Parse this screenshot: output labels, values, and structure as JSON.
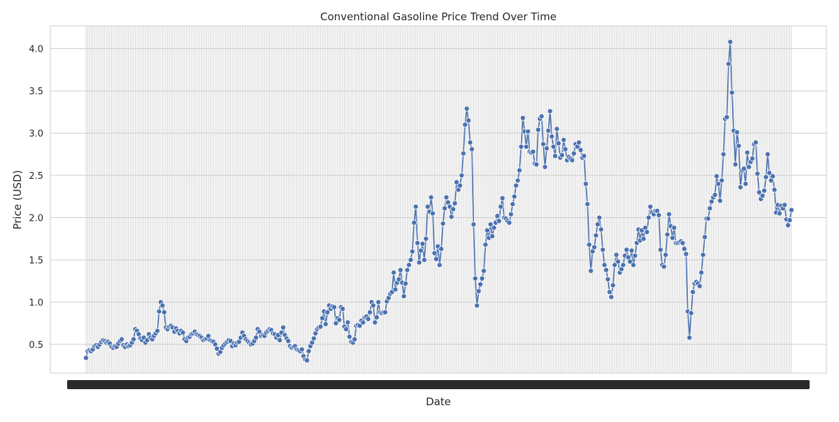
{
  "chart_data": {
    "type": "line",
    "title": "Conventional Gasoline Price Trend Over Time",
    "xlabel": "Date",
    "ylabel": "Price (USD)",
    "ylim": [
      0.16,
      4.27
    ],
    "yticks": [
      0.5,
      1.0,
      1.5,
      2.0,
      2.5,
      3.0,
      3.5,
      4.0
    ],
    "ytick_labels": [
      "0.5",
      "1.0",
      "1.5",
      "2.0",
      "2.5",
      "3.0",
      "3.5",
      "4.0"
    ],
    "grid": true,
    "x_tick_labels_note": "x tick labels are overlapping and illegible",
    "series": [
      {
        "color": "#4c72b0",
        "values": [
          0.34,
          0.42,
          0.43,
          0.42,
          0.44,
          0.48,
          0.49,
          0.47,
          0.5,
          0.53,
          0.55,
          0.54,
          0.52,
          0.53,
          0.51,
          0.47,
          0.46,
          0.48,
          0.47,
          0.51,
          0.54,
          0.56,
          0.49,
          0.47,
          0.5,
          0.48,
          0.49,
          0.52,
          0.56,
          0.68,
          0.66,
          0.62,
          0.57,
          0.55,
          0.58,
          0.52,
          0.55,
          0.62,
          0.58,
          0.56,
          0.6,
          0.63,
          0.66,
          0.89,
          1.0,
          0.96,
          0.88,
          0.7,
          0.68,
          0.71,
          0.72,
          0.7,
          0.65,
          0.69,
          0.66,
          0.63,
          0.66,
          0.64,
          0.56,
          0.54,
          0.58,
          0.59,
          0.62,
          0.63,
          0.65,
          0.62,
          0.61,
          0.6,
          0.58,
          0.55,
          0.56,
          0.57,
          0.6,
          0.55,
          0.54,
          0.53,
          0.5,
          0.45,
          0.39,
          0.41,
          0.46,
          0.49,
          0.51,
          0.53,
          0.55,
          0.54,
          0.48,
          0.51,
          0.49,
          0.52,
          0.53,
          0.58,
          0.64,
          0.6,
          0.56,
          0.54,
          0.52,
          0.5,
          0.51,
          0.54,
          0.58,
          0.68,
          0.65,
          0.6,
          0.61,
          0.6,
          0.64,
          0.66,
          0.68,
          0.67,
          0.63,
          0.62,
          0.58,
          0.61,
          0.55,
          0.64,
          0.7,
          0.61,
          0.57,
          0.54,
          0.48,
          0.46,
          0.47,
          0.48,
          0.44,
          0.43,
          0.42,
          0.44,
          0.36,
          0.32,
          0.31,
          0.42,
          0.48,
          0.52,
          0.57,
          0.63,
          0.68,
          0.7,
          0.71,
          0.81,
          0.89,
          0.74,
          0.88,
          0.96,
          0.92,
          0.95,
          0.94,
          0.75,
          0.81,
          0.79,
          0.94,
          0.92,
          0.71,
          0.68,
          0.76,
          0.59,
          0.53,
          0.52,
          0.56,
          0.72,
          0.73,
          0.72,
          0.78,
          0.76,
          0.82,
          0.83,
          0.8,
          0.88,
          1.0,
          0.96,
          0.76,
          0.82,
          1.0,
          0.88,
          0.87,
          0.88,
          0.88,
          1.01,
          1.05,
          1.1,
          1.12,
          1.35,
          1.15,
          1.23,
          1.27,
          1.38,
          1.23,
          1.07,
          1.22,
          1.38,
          1.44,
          1.5,
          1.6,
          1.94,
          2.13,
          1.7,
          1.47,
          1.61,
          1.69,
          1.5,
          1.75,
          2.13,
          2.07,
          2.24,
          2.05,
          1.58,
          1.51,
          1.66,
          1.44,
          1.63,
          1.93,
          2.11,
          2.24,
          2.18,
          2.13,
          2.01,
          2.1,
          2.17,
          2.42,
          2.33,
          2.38,
          2.5,
          2.76,
          3.1,
          3.29,
          3.15,
          2.89,
          2.81,
          1.92,
          1.28,
          0.96,
          1.13,
          1.21,
          1.28,
          1.37,
          1.68,
          1.85,
          1.76,
          1.92,
          1.78,
          1.88,
          1.94,
          2.02,
          1.96,
          2.13,
          2.23,
          2.0,
          1.99,
          1.96,
          1.94,
          2.04,
          2.16,
          2.25,
          2.38,
          2.44,
          2.56,
          2.84,
          3.18,
          3.02,
          2.84,
          3.02,
          2.78,
          2.77,
          2.78,
          2.64,
          2.63,
          3.04,
          3.17,
          3.2,
          2.87,
          2.6,
          2.82,
          3.03,
          3.26,
          2.96,
          2.84,
          2.73,
          3.05,
          2.88,
          2.71,
          2.74,
          2.92,
          2.81,
          2.68,
          2.72,
          2.7,
          2.68,
          2.76,
          2.87,
          2.84,
          2.89,
          2.8,
          2.71,
          2.73,
          2.4,
          2.16,
          1.68,
          1.37,
          1.6,
          1.65,
          1.79,
          1.92,
          2.0,
          1.86,
          1.62,
          1.44,
          1.38,
          1.27,
          1.12,
          1.06,
          1.2,
          1.44,
          1.56,
          1.48,
          1.35,
          1.39,
          1.44,
          1.55,
          1.62,
          1.53,
          1.48,
          1.61,
          1.44,
          1.55,
          1.7,
          1.86,
          1.73,
          1.85,
          1.75,
          1.88,
          1.83,
          2.0,
          2.13,
          2.06,
          2.04,
          2.08,
          2.08,
          2.03,
          1.62,
          1.44,
          1.42,
          1.56,
          1.8,
          2.04,
          1.9,
          1.76,
          1.88,
          1.7,
          1.7,
          1.71,
          1.72,
          1.7,
          1.63,
          1.57,
          0.89,
          0.58,
          0.87,
          1.12,
          1.22,
          1.24,
          1.22,
          1.19,
          1.35,
          1.56,
          1.77,
          1.99,
          1.99,
          2.11,
          2.19,
          2.24,
          2.27,
          2.49,
          2.4,
          2.2,
          2.44,
          2.75,
          3.17,
          3.19,
          3.82,
          4.08,
          3.48,
          3.03,
          2.63,
          3.01,
          2.85,
          2.36,
          2.56,
          2.58,
          2.4,
          2.77,
          2.6,
          2.66,
          2.7,
          2.87,
          2.89,
          2.52,
          2.3,
          2.22,
          2.26,
          2.32,
          2.48,
          2.75,
          2.53,
          2.44,
          2.49,
          2.33,
          2.06,
          2.15,
          2.05,
          2.14,
          2.11,
          2.15,
          1.98,
          1.91,
          1.97,
          2.09
        ]
      }
    ]
  }
}
